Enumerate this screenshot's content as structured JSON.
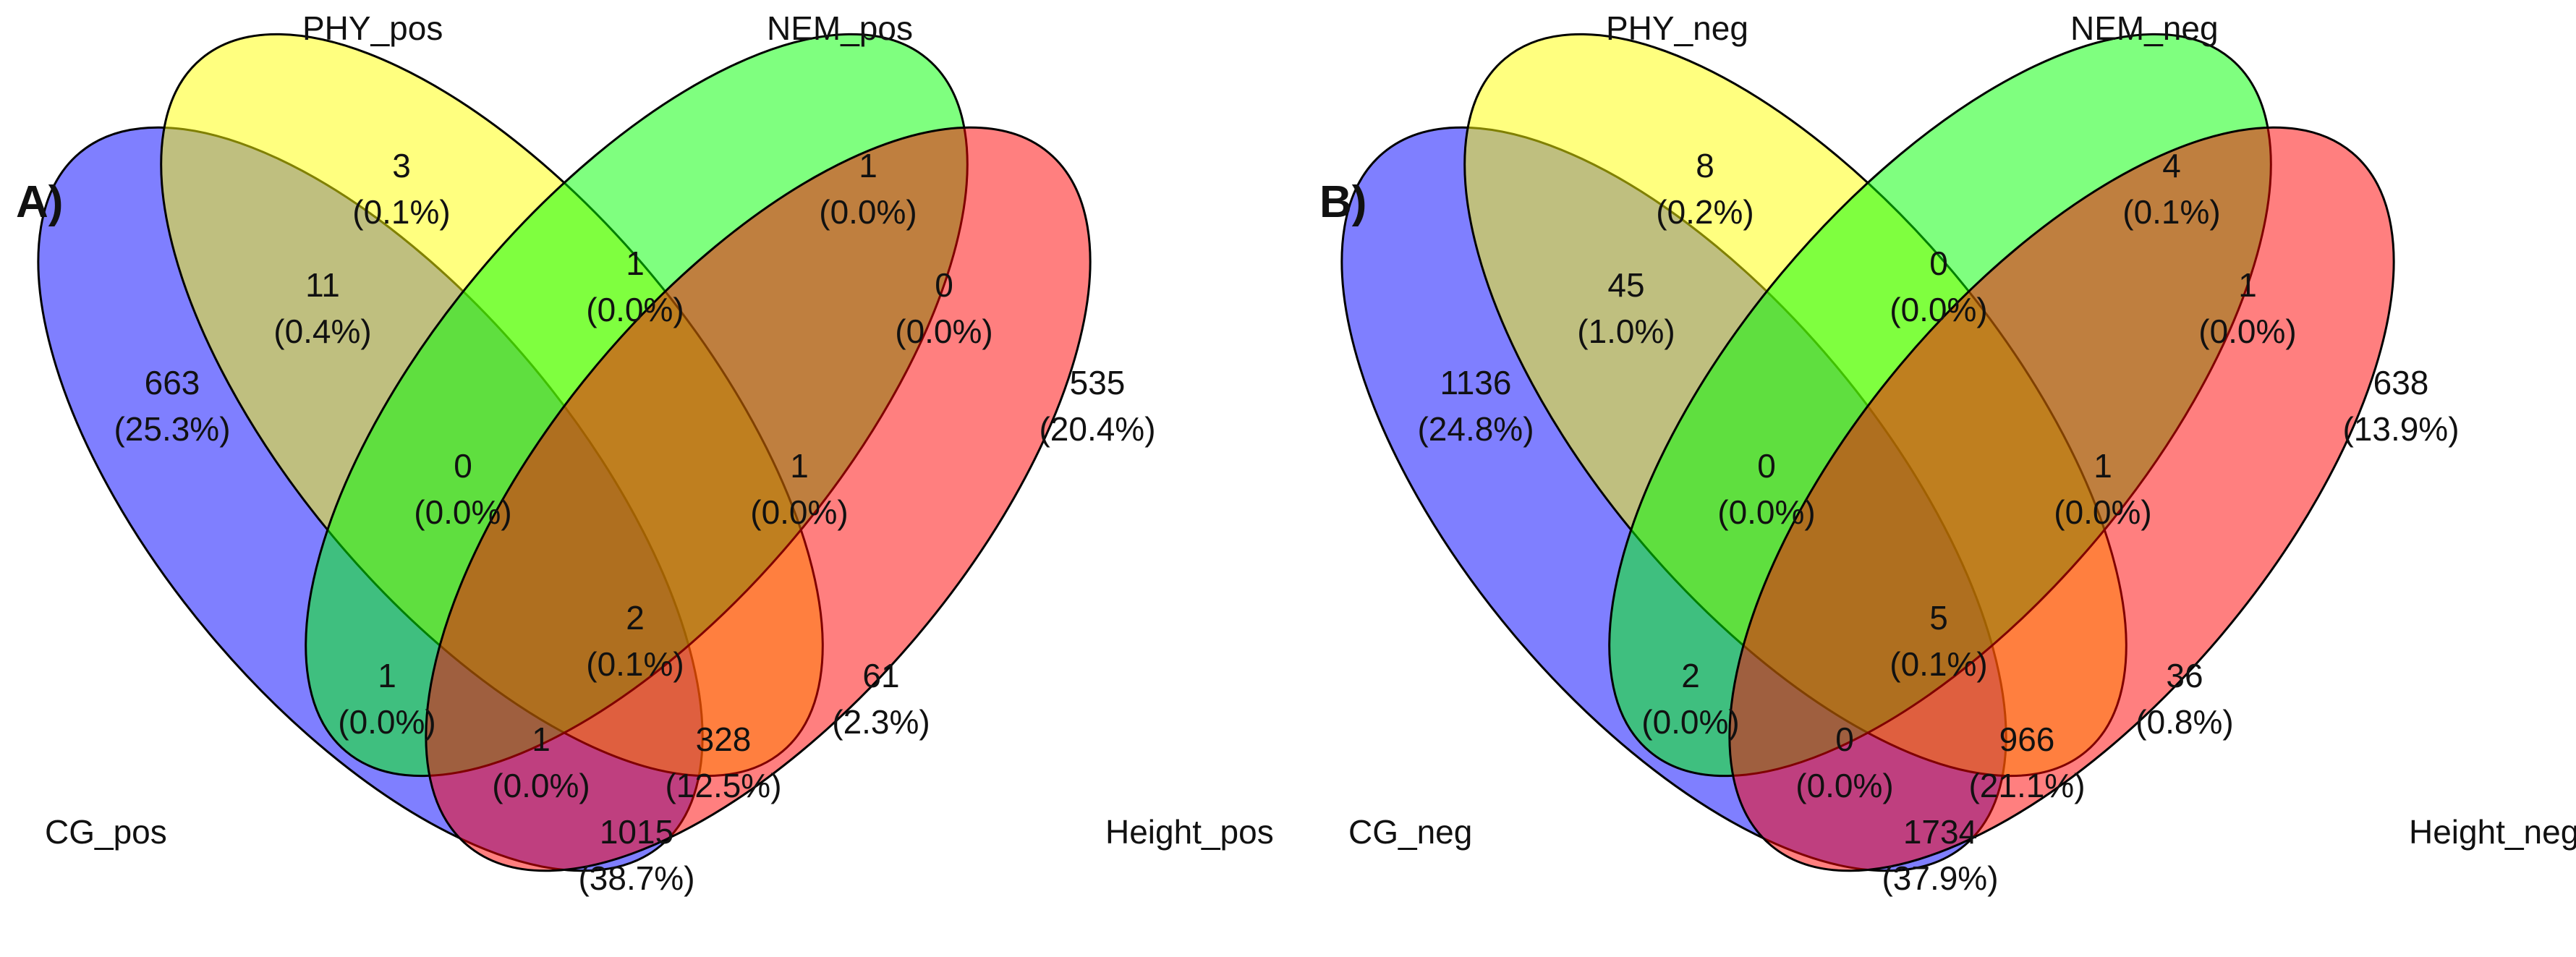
{
  "panels": [
    {
      "letter": "A)",
      "sets": [
        {
          "key": "A",
          "name": "CG_pos",
          "color": "#0000FF"
        },
        {
          "key": "B",
          "name": "PHY_pos",
          "color": "#FFFF00"
        },
        {
          "key": "C",
          "name": "NEM_pos",
          "color": "#00FF00"
        },
        {
          "key": "D",
          "name": "Height_pos",
          "color": "#FF0000"
        }
      ],
      "regions": [
        {
          "key": "A",
          "count": "663",
          "percent": "(25.3%)"
        },
        {
          "key": "B",
          "count": "3",
          "percent": "(0.1%)"
        },
        {
          "key": "C",
          "count": "1",
          "percent": "(0.0%)"
        },
        {
          "key": "D",
          "count": "535",
          "percent": "(20.4%)"
        },
        {
          "key": "AB",
          "count": "11",
          "percent": "(0.4%)"
        },
        {
          "key": "BC",
          "count": "1",
          "percent": "(0.0%)"
        },
        {
          "key": "CD",
          "count": "0",
          "percent": "(0.0%)"
        },
        {
          "key": "ABC",
          "count": "0",
          "percent": "(0.0%)"
        },
        {
          "key": "BCD",
          "count": "1",
          "percent": "(0.0%)"
        },
        {
          "key": "ABCD",
          "count": "2",
          "percent": "(0.1%)"
        },
        {
          "key": "AC",
          "count": "1",
          "percent": "(0.0%)"
        },
        {
          "key": "BD",
          "count": "61",
          "percent": "(2.3%)"
        },
        {
          "key": "ACD",
          "count": "1",
          "percent": "(0.0%)"
        },
        {
          "key": "ABD",
          "count": "328",
          "percent": "(12.5%)"
        },
        {
          "key": "AD",
          "count": "1015",
          "percent": "(38.7%)"
        }
      ]
    },
    {
      "letter": "B)",
      "sets": [
        {
          "key": "A",
          "name": "CG_neg",
          "color": "#0000FF"
        },
        {
          "key": "B",
          "name": "PHY_neg",
          "color": "#FFFF00"
        },
        {
          "key": "C",
          "name": "NEM_neg",
          "color": "#00FF00"
        },
        {
          "key": "D",
          "name": "Height_neg",
          "color": "#FF0000"
        }
      ],
      "regions": [
        {
          "key": "A",
          "count": "1136",
          "percent": "(24.8%)"
        },
        {
          "key": "B",
          "count": "8",
          "percent": "(0.2%)"
        },
        {
          "key": "C",
          "count": "4",
          "percent": "(0.1%)"
        },
        {
          "key": "D",
          "count": "638",
          "percent": "(13.9%)"
        },
        {
          "key": "AB",
          "count": "45",
          "percent": "(1.0%)"
        },
        {
          "key": "BC",
          "count": "0",
          "percent": "(0.0%)"
        },
        {
          "key": "CD",
          "count": "1",
          "percent": "(0.0%)"
        },
        {
          "key": "ABC",
          "count": "0",
          "percent": "(0.0%)"
        },
        {
          "key": "BCD",
          "count": "1",
          "percent": "(0.0%)"
        },
        {
          "key": "ABCD",
          "count": "5",
          "percent": "(0.1%)"
        },
        {
          "key": "AC",
          "count": "2",
          "percent": "(0.0%)"
        },
        {
          "key": "BD",
          "count": "36",
          "percent": "(0.8%)"
        },
        {
          "key": "ACD",
          "count": "0",
          "percent": "(0.0%)"
        },
        {
          "key": "ABD",
          "count": "966",
          "percent": "(21.1%)"
        },
        {
          "key": "AD",
          "count": "1734",
          "percent": "(37.9%)"
        }
      ]
    }
  ]
}
